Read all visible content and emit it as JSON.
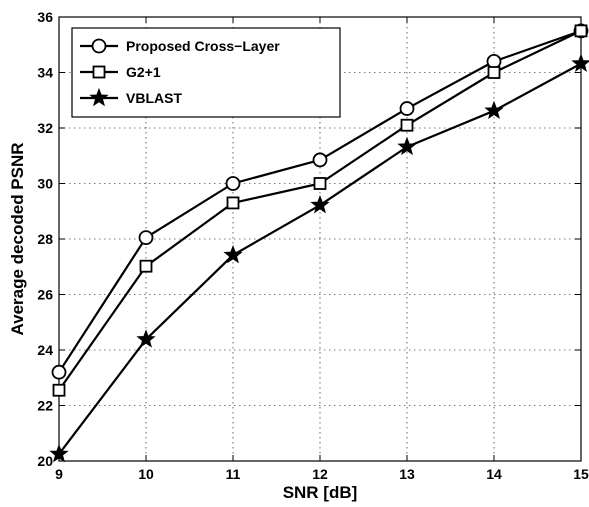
{
  "chart_data": {
    "type": "line",
    "title": "",
    "xlabel": "SNR [dB]",
    "ylabel": "Average decoded PSNR",
    "xlim": [
      9,
      15
    ],
    "ylim": [
      20,
      36
    ],
    "x_ticks": [
      "9",
      "10",
      "11",
      "12",
      "13",
      "14",
      "15"
    ],
    "y_ticks": [
      "20",
      "22",
      "24",
      "26",
      "28",
      "30",
      "32",
      "34",
      "36"
    ],
    "grid": true,
    "legend_position": "top-left",
    "x": [
      9,
      10,
      11,
      12,
      13,
      14,
      15
    ],
    "series": [
      {
        "name": "Proposed Cross−Layer",
        "marker": "circle",
        "color": "#000000",
        "values": [
          23.2,
          28.05,
          30.0,
          30.85,
          32.7,
          34.4,
          35.5
        ]
      },
      {
        "name": "G2+1",
        "marker": "square",
        "color": "#000000",
        "values": [
          22.55,
          27.02,
          29.3,
          30.0,
          32.1,
          34.0,
          35.5
        ]
      },
      {
        "name": "VBLAST",
        "marker": "star",
        "color": "#000000",
        "values": [
          20.25,
          24.38,
          27.42,
          29.22,
          31.32,
          32.62,
          34.32
        ]
      }
    ]
  }
}
